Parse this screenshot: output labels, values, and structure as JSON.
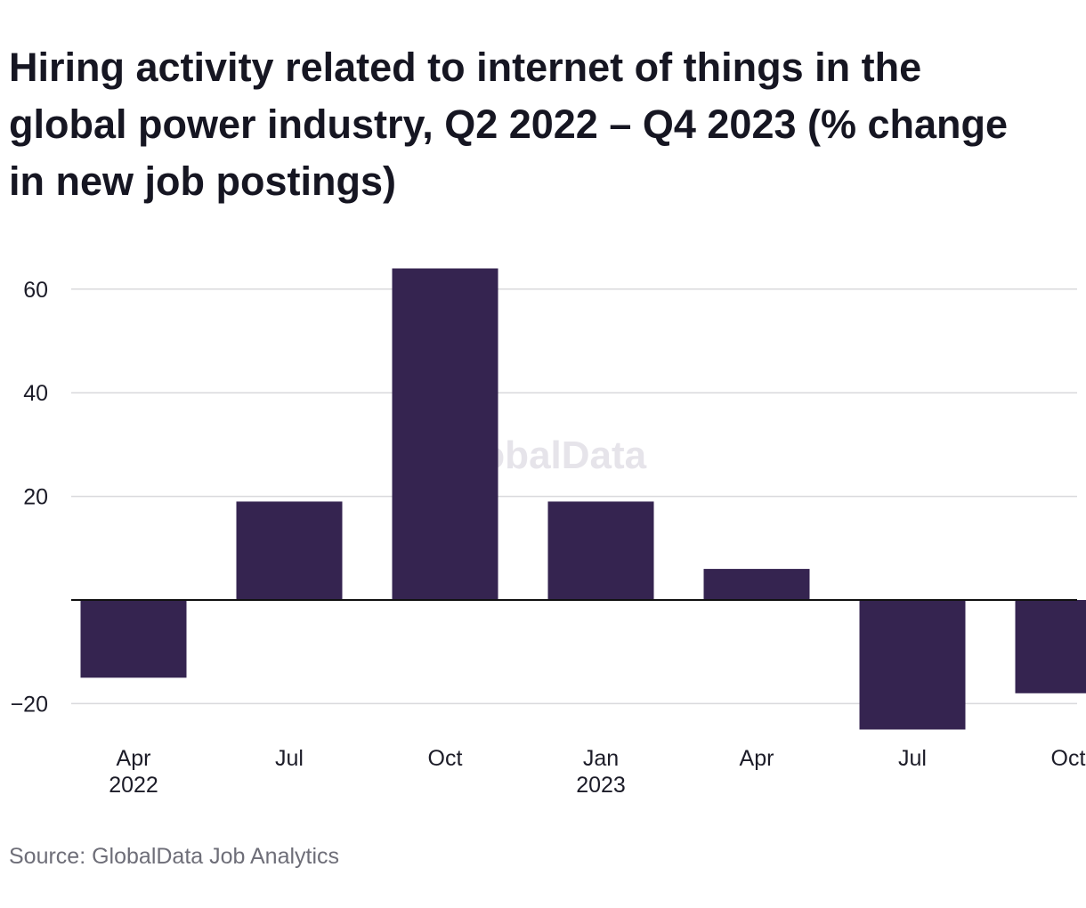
{
  "title": "Hiring activity related to internet of things in the global power industry, Q2 2022 – Q4 2023 (% change in new job postings)",
  "source": "Source: GlobalData Job Analytics",
  "watermark": "GlobalData",
  "colors": {
    "bar": "#352450",
    "grid": "#d9d9dc",
    "baseline": "#111111",
    "tick_text": "#1c1c28",
    "watermark": "#e6e4ea"
  },
  "chart_data": {
    "type": "bar",
    "categories": [
      [
        "Apr",
        "2022"
      ],
      [
        "Jul"
      ],
      [
        "Oct"
      ],
      [
        "Jan",
        "2023"
      ],
      [
        "Apr"
      ],
      [
        "Jul"
      ],
      [
        "Oct"
      ]
    ],
    "values": [
      -15,
      19,
      64,
      19,
      6,
      -25,
      -18
    ],
    "y_ticks": [
      60,
      40,
      20,
      -20
    ],
    "y_tick_labels": [
      "60",
      "40",
      "20",
      "−20"
    ],
    "ylim": [
      -27,
      66
    ],
    "title": "Hiring activity related to internet of things in the global power industry, Q2 2022 – Q4 2023 (% change in new job postings)",
    "xlabel": "",
    "ylabel": "",
    "grid": true
  }
}
